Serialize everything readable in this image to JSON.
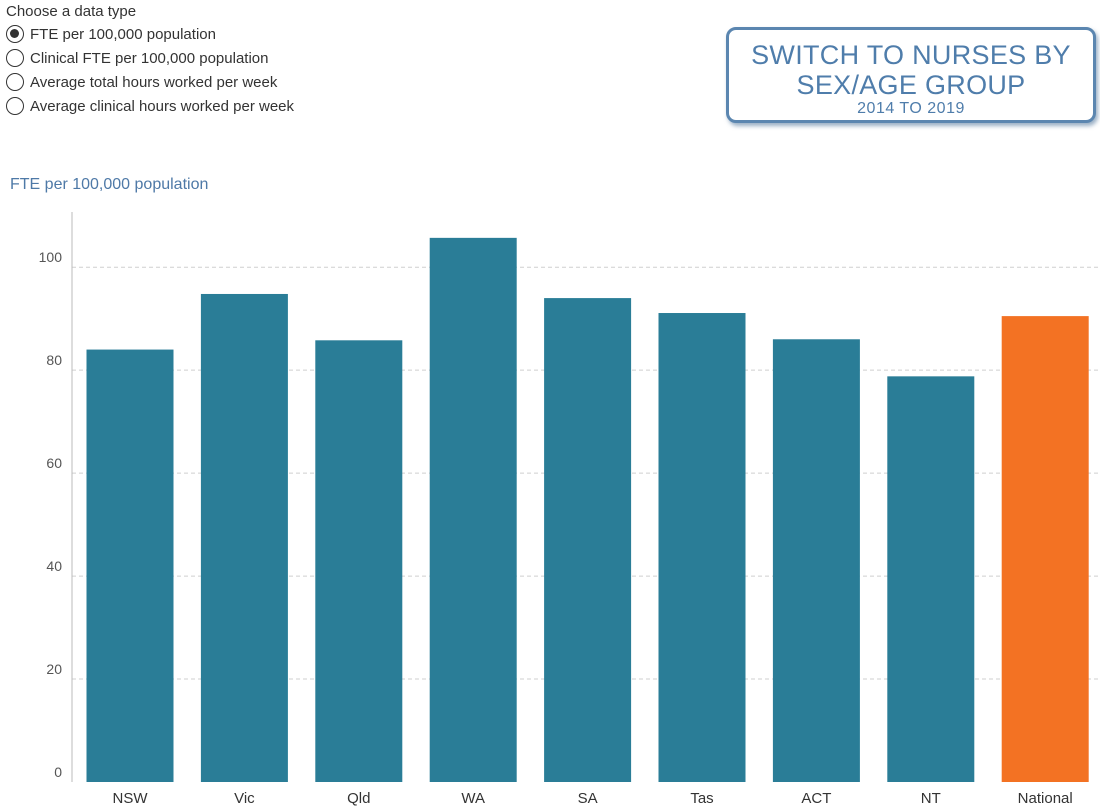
{
  "controls": {
    "heading": "Choose a data type",
    "options": [
      {
        "label": "FTE per 100,000 population",
        "checked": true
      },
      {
        "label": "Clinical FTE per 100,000 population",
        "checked": false
      },
      {
        "label": "Average total hours worked per week",
        "checked": false
      },
      {
        "label": "Average clinical hours worked per week",
        "checked": false
      }
    ]
  },
  "switch_button": {
    "line1": "SWITCH TO NURSES BY",
    "line2": "SEX/AGE GROUP",
    "line3": "2014 TO 2019"
  },
  "colors": {
    "bar": "#2a7d97",
    "highlight": "#f37223",
    "grid": "#cfcfcf",
    "axis": "#bbbbbb"
  },
  "chart_data": {
    "type": "bar",
    "title": "FTE per 100,000 population",
    "categories": [
      "NSW",
      "Vic",
      "Qld",
      "WA",
      "SA",
      "Tas",
      "ACT",
      "NT",
      "National"
    ],
    "values": [
      84.0,
      94.8,
      85.8,
      105.7,
      94.0,
      91.1,
      86.0,
      78.8,
      90.5
    ],
    "highlight": "National",
    "yticks": [
      0,
      20,
      40,
      60,
      80,
      100
    ],
    "ylim": [
      0,
      110
    ],
    "grid": true
  }
}
